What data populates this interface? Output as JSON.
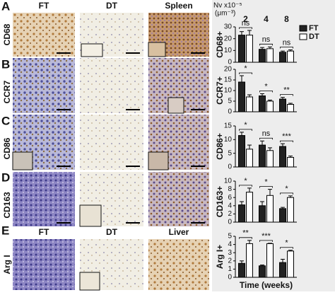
{
  "panels": {
    "letters": [
      "A",
      "B",
      "C",
      "D",
      "E"
    ],
    "row_labels": [
      "CD68",
      "CCR7",
      "CD86",
      "CD163",
      "Arg I"
    ],
    "columns_top": [
      "FT",
      "DT",
      "Spleen"
    ],
    "columns_bottom": [
      "FT",
      "DT",
      "Liver"
    ],
    "header": [
      "Nv x10⁻⁵",
      "(μm⁻³)"
    ]
  },
  "chart_data": [
    {
      "type": "bar",
      "y_label": "CD68+",
      "categories": [
        "2",
        "4",
        "8"
      ],
      "ylim": [
        0,
        30
      ],
      "yticks": [
        0,
        10,
        20,
        30
      ],
      "legend": "upper right",
      "series": [
        {
          "name": "FT",
          "color": "#222222",
          "values": [
            23,
            11,
            8.5
          ],
          "errors": [
            3,
            1.5,
            1
          ]
        },
        {
          "name": "DT",
          "color": "#ffffff",
          "values": [
            23,
            11.5,
            9.5
          ],
          "errors": [
            4,
            1.5,
            1
          ]
        }
      ],
      "annotations": [
        "ns",
        "ns",
        "ns"
      ]
    },
    {
      "type": "bar",
      "y_label": "CCR7+",
      "categories": [
        null,
        null,
        null
      ],
      "ylim": [
        0,
        20
      ],
      "yticks": [
        0,
        5,
        10,
        15,
        20
      ],
      "series": [
        {
          "color": "#222222",
          "values": [
            14,
            7.5,
            6
          ],
          "errors": [
            3,
            1,
            0.8
          ]
        },
        {
          "color": "#ffffff",
          "values": [
            7,
            5,
            3.5
          ],
          "errors": [
            1,
            0.5,
            0.5
          ]
        }
      ],
      "annotations": [
        "*",
        "*",
        "**"
      ]
    },
    {
      "type": "bar",
      "y_label": "CD86+",
      "categories": [
        null,
        null,
        null
      ],
      "ylim": [
        0,
        15
      ],
      "yticks": [
        0,
        5,
        10,
        15
      ],
      "series": [
        {
          "color": "#222222",
          "values": [
            11.5,
            8,
            7.5
          ],
          "errors": [
            1.2,
            1.5,
            1
          ]
        },
        {
          "color": "#ffffff",
          "values": [
            6.5,
            6,
            3.5
          ],
          "errors": [
            1.5,
            1,
            0.5
          ]
        }
      ],
      "annotations": [
        "*",
        "ns",
        "***"
      ]
    },
    {
      "type": "bar",
      "y_label": "CD163+",
      "categories": [
        null,
        null,
        null
      ],
      "ylim": [
        0,
        10
      ],
      "yticks": [
        0,
        2,
        4,
        6,
        8,
        10
      ],
      "series": [
        {
          "color": "#222222",
          "values": [
            4.2,
            4,
            3.3
          ],
          "errors": [
            0.8,
            1,
            0.3
          ]
        },
        {
          "color": "#ffffff",
          "values": [
            7.3,
            6.5,
            6
          ],
          "errors": [
            1,
            1.5,
            0.4
          ]
        }
      ],
      "annotations": [
        "*",
        "*",
        "*"
      ]
    },
    {
      "type": "bar",
      "y_label": "Arg I+",
      "x_label": "Time (weeks)",
      "categories": [
        null,
        null,
        null
      ],
      "ylim": [
        0,
        5
      ],
      "yticks": [
        0,
        1,
        2,
        3,
        4,
        5
      ],
      "series": [
        {
          "color": "#222222",
          "values": [
            1.7,
            1.4,
            1.8
          ],
          "errors": [
            0.3,
            0.1,
            0.4
          ]
        },
        {
          "color": "#ffffff",
          "values": [
            4.1,
            4.1,
            3.2
          ],
          "errors": [
            0.4,
            0.05,
            0.1
          ]
        }
      ],
      "annotations": [
        "**",
        "***",
        "*"
      ]
    }
  ]
}
